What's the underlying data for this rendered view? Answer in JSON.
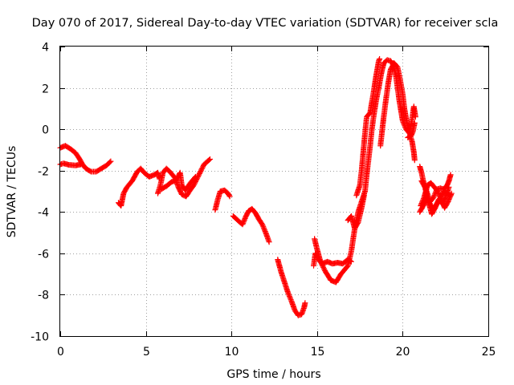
{
  "chart_data": {
    "type": "scatter",
    "title": "Day 070 of 2017, Sidereal Day-to-day VTEC variation (SDTVAR) for receiver scla",
    "xlabel": "GPS time / hours",
    "ylabel": "SDTVAR / TECUs",
    "xlim": [
      0,
      25
    ],
    "ylim": [
      -10,
      4
    ],
    "xticks": [
      "0",
      "5",
      "10",
      "15",
      "20",
      "25"
    ],
    "yticks": [
      "-10",
      "-8",
      "-6",
      "-4",
      "-2",
      "0",
      "2",
      "4"
    ],
    "grid": true,
    "marker": "plus",
    "color": "#ff0000",
    "series": [
      {
        "name": "",
        "segments": [
          [
            [
              0.0,
              -1.7
            ],
            [
              0.2,
              -1.65
            ],
            [
              0.5,
              -1.72
            ],
            [
              0.9,
              -1.75
            ],
            [
              1.2,
              -1.7
            ]
          ],
          [
            [
              0.0,
              -0.9
            ],
            [
              0.3,
              -0.8
            ],
            [
              0.6,
              -0.95
            ],
            [
              0.9,
              -1.15
            ],
            [
              1.1,
              -1.4
            ],
            [
              1.3,
              -1.7
            ],
            [
              1.5,
              -1.9
            ],
            [
              1.8,
              -2.05
            ],
            [
              2.1,
              -2.05
            ],
            [
              2.4,
              -1.9
            ],
            [
              2.7,
              -1.75
            ],
            [
              2.95,
              -1.55
            ]
          ],
          [
            [
              3.4,
              -3.55
            ],
            [
              3.55,
              -3.7
            ],
            [
              3.6,
              -3.5
            ],
            [
              3.7,
              -3.1
            ],
            [
              3.9,
              -2.8
            ],
            [
              4.2,
              -2.5
            ],
            [
              4.5,
              -2.05
            ],
            [
              4.7,
              -1.9
            ],
            [
              4.9,
              -2.1
            ],
            [
              5.2,
              -2.3
            ],
            [
              5.5,
              -2.2
            ],
            [
              5.7,
              -2.1
            ],
            [
              5.8,
              -2.4
            ]
          ],
          [
            [
              5.7,
              -3.1
            ],
            [
              5.85,
              -2.7
            ],
            [
              6.0,
              -2.1
            ],
            [
              6.2,
              -1.9
            ],
            [
              6.4,
              -2.05
            ],
            [
              6.7,
              -2.35
            ],
            [
              6.9,
              -2.8
            ],
            [
              7.1,
              -3.15
            ],
            [
              7.35,
              -3.25
            ],
            [
              7.5,
              -3.05
            ],
            [
              7.8,
              -2.7
            ],
            [
              8.1,
              -2.2
            ],
            [
              8.4,
              -1.7
            ],
            [
              8.6,
              -1.55
            ],
            [
              8.75,
              -1.45
            ]
          ],
          [
            [
              5.9,
              -2.9
            ],
            [
              6.2,
              -2.75
            ],
            [
              6.5,
              -2.55
            ],
            [
              6.8,
              -2.45
            ],
            [
              7.0,
              -2.1
            ],
            [
              7.1,
              -2.7
            ],
            [
              7.3,
              -2.95
            ],
            [
              7.6,
              -2.6
            ],
            [
              7.9,
              -2.3
            ]
          ],
          [
            [
              9.05,
              -3.9
            ],
            [
              9.2,
              -3.4
            ],
            [
              9.35,
              -3.0
            ],
            [
              9.6,
              -2.95
            ],
            [
              9.8,
              -3.1
            ],
            [
              9.9,
              -3.25
            ]
          ],
          [
            [
              10.1,
              -4.2
            ],
            [
              10.3,
              -4.35
            ],
            [
              10.5,
              -4.5
            ],
            [
              10.65,
              -4.6
            ],
            [
              10.85,
              -4.2
            ],
            [
              11.0,
              -3.95
            ],
            [
              11.2,
              -3.85
            ],
            [
              11.4,
              -4.05
            ],
            [
              11.6,
              -4.35
            ],
            [
              11.8,
              -4.6
            ],
            [
              12.0,
              -5.0
            ],
            [
              12.2,
              -5.45
            ]
          ],
          [
            [
              12.7,
              -6.3
            ],
            [
              12.9,
              -6.9
            ],
            [
              13.1,
              -7.4
            ],
            [
              13.3,
              -7.9
            ],
            [
              13.5,
              -8.3
            ],
            [
              13.7,
              -8.75
            ],
            [
              13.9,
              -9.0
            ],
            [
              14.1,
              -8.95
            ],
            [
              14.25,
              -8.6
            ],
            [
              14.3,
              -8.4
            ]
          ],
          [
            [
              14.8,
              -6.6
            ],
            [
              14.9,
              -6.0
            ],
            [
              15.1,
              -6.3
            ],
            [
              15.3,
              -6.5
            ],
            [
              15.6,
              -6.4
            ],
            [
              15.9,
              -6.5
            ],
            [
              16.2,
              -6.45
            ],
            [
              16.5,
              -6.5
            ],
            [
              16.8,
              -6.3
            ],
            [
              17.0,
              -6.4
            ]
          ],
          [
            [
              14.85,
              -5.3
            ],
            [
              15.0,
              -5.8
            ],
            [
              15.2,
              -6.4
            ],
            [
              15.5,
              -6.9
            ],
            [
              15.8,
              -7.3
            ],
            [
              16.1,
              -7.4
            ],
            [
              16.4,
              -7.0
            ],
            [
              16.8,
              -6.6
            ],
            [
              17.0,
              -5.9
            ],
            [
              17.2,
              -4.8
            ],
            [
              17.4,
              -4.5
            ],
            [
              17.6,
              -3.8
            ],
            [
              17.75,
              -3.2
            ]
          ],
          [
            [
              16.8,
              -4.4
            ],
            [
              17.0,
              -4.2
            ],
            [
              17.2,
              -4.8
            ],
            [
              17.4,
              -4.0
            ],
            [
              17.6,
              -3.5
            ],
            [
              17.8,
              -3.0
            ],
            [
              17.9,
              -2.2
            ],
            [
              18.0,
              -1.5
            ],
            [
              18.1,
              -0.8
            ],
            [
              18.2,
              0.0
            ],
            [
              18.3,
              0.6
            ],
            [
              18.45,
              1.4
            ],
            [
              18.6,
              2.0
            ],
            [
              18.75,
              2.7
            ],
            [
              18.9,
              3.2
            ],
            [
              19.1,
              3.35
            ],
            [
              19.3,
              3.3
            ],
            [
              19.45,
              3.1
            ],
            [
              19.6,
              2.6
            ],
            [
              19.7,
              2.0
            ],
            [
              19.8,
              1.4
            ],
            [
              19.9,
              0.9
            ],
            [
              20.0,
              0.4
            ],
            [
              20.2,
              0.0
            ],
            [
              20.4,
              -0.2
            ],
            [
              20.55,
              -0.6
            ],
            [
              20.65,
              -1.1
            ],
            [
              20.7,
              -1.5
            ]
          ],
          [
            [
              17.3,
              -3.2
            ],
            [
              17.5,
              -2.7
            ],
            [
              17.6,
              -2.0
            ],
            [
              17.7,
              -1.1
            ],
            [
              17.8,
              -0.2
            ],
            [
              17.9,
              0.6
            ],
            [
              18.1,
              0.8
            ],
            [
              18.3,
              1.8
            ],
            [
              18.45,
              2.6
            ],
            [
              18.6,
              3.3
            ],
            [
              18.65,
              3.4
            ]
          ],
          [
            [
              18.7,
              -0.8
            ],
            [
              18.85,
              0.3
            ],
            [
              19.0,
              1.3
            ],
            [
              19.15,
              2.2
            ],
            [
              19.3,
              2.9
            ],
            [
              19.5,
              3.2
            ],
            [
              19.7,
              3.0
            ],
            [
              19.85,
              2.4
            ],
            [
              20.0,
              1.7
            ],
            [
              20.1,
              1.0
            ],
            [
              20.25,
              0.3
            ],
            [
              20.4,
              -0.1
            ],
            [
              20.55,
              0.5
            ],
            [
              20.65,
              1.1
            ],
            [
              20.75,
              0.6
            ]
          ],
          [
            [
              20.3,
              -0.4
            ],
            [
              20.5,
              -0.3
            ],
            [
              20.6,
              -0.1
            ],
            [
              20.7,
              0.3
            ]
          ],
          [
            [
              21.0,
              -1.8
            ],
            [
              21.1,
              -2.1
            ],
            [
              21.2,
              -2.5
            ],
            [
              21.4,
              -3.0
            ],
            [
              21.6,
              -3.5
            ],
            [
              21.8,
              -3.3
            ],
            [
              22.0,
              -2.9
            ],
            [
              22.2,
              -2.85
            ],
            [
              22.4,
              -2.9
            ],
            [
              22.6,
              -2.7
            ],
            [
              22.7,
              -2.5
            ],
            [
              22.8,
              -2.2
            ]
          ],
          [
            [
              21.0,
              -4.0
            ],
            [
              21.2,
              -3.7
            ],
            [
              21.4,
              -3.4
            ],
            [
              21.6,
              -3.6
            ],
            [
              21.8,
              -3.9
            ],
            [
              22.0,
              -3.6
            ],
            [
              22.2,
              -3.3
            ],
            [
              22.4,
              -3.0
            ],
            [
              22.6,
              -3.1
            ],
            [
              22.8,
              -3.2
            ]
          ],
          [
            [
              21.1,
              -2.5
            ],
            [
              21.3,
              -2.8
            ],
            [
              21.5,
              -3.5
            ],
            [
              21.7,
              -4.1
            ],
            [
              21.9,
              -3.8
            ],
            [
              22.1,
              -3.4
            ],
            [
              22.3,
              -3.6
            ],
            [
              22.5,
              -3.3
            ],
            [
              22.7,
              -2.8
            ]
          ],
          [
            [
              21.05,
              -3.7
            ],
            [
              21.25,
              -3.3
            ],
            [
              21.45,
              -2.7
            ],
            [
              21.65,
              -2.6
            ],
            [
              21.85,
              -2.8
            ],
            [
              22.05,
              -3.0
            ],
            [
              22.25,
              -3.4
            ],
            [
              22.45,
              -3.8
            ],
            [
              22.65,
              -3.5
            ],
            [
              22.85,
              -3.1
            ]
          ]
        ]
      }
    ]
  }
}
